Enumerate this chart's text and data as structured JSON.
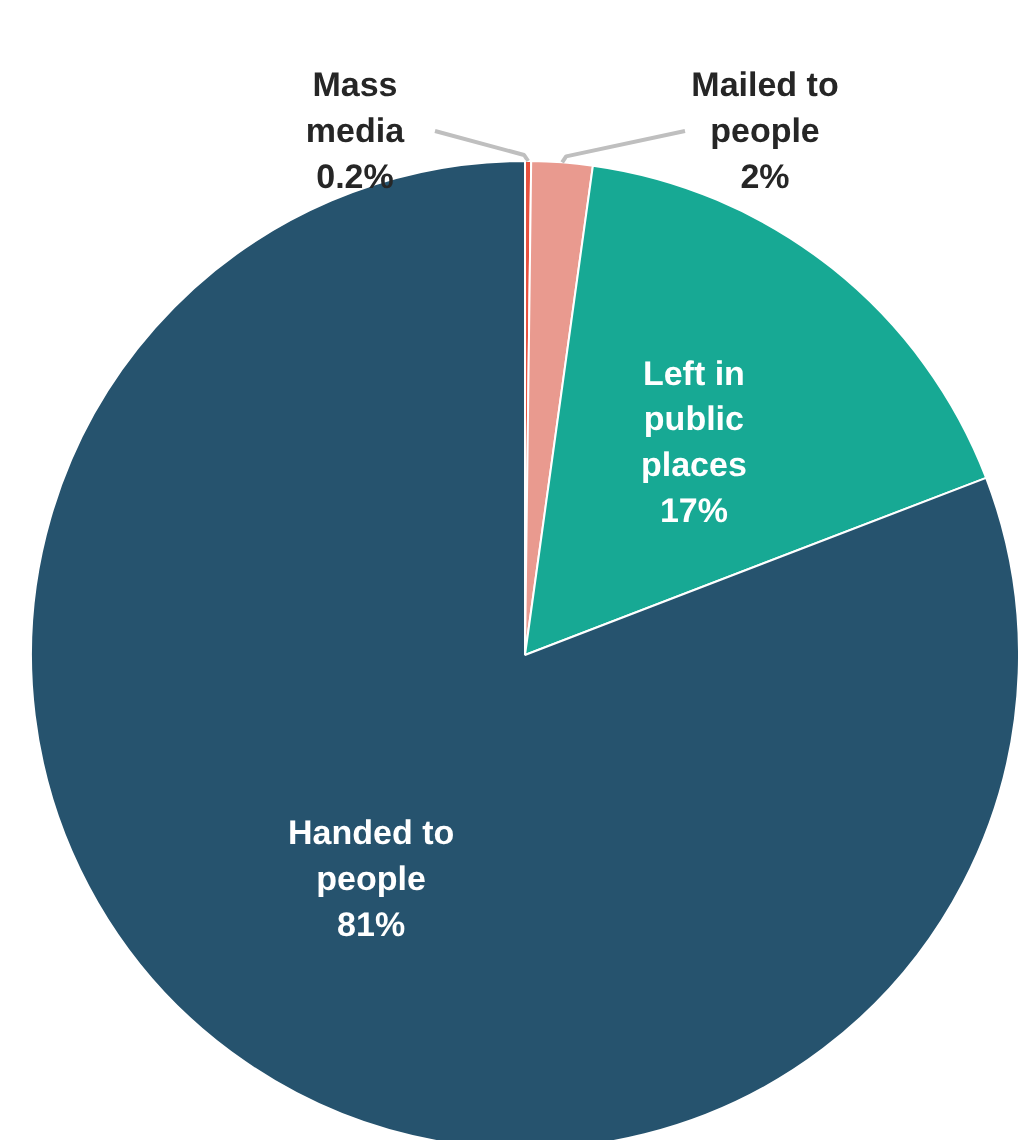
{
  "chart_data": {
    "type": "pie",
    "categories": [
      "Mass media",
      "Mailed to people",
      "Left in public places",
      "Handed to people"
    ],
    "values": [
      0.2,
      2,
      17,
      81
    ],
    "value_labels": [
      "0.2%",
      "2%",
      "17%",
      "81%"
    ],
    "colors": [
      "#e8513f",
      "#e99a8f",
      "#17a994",
      "#26536e"
    ]
  }
}
